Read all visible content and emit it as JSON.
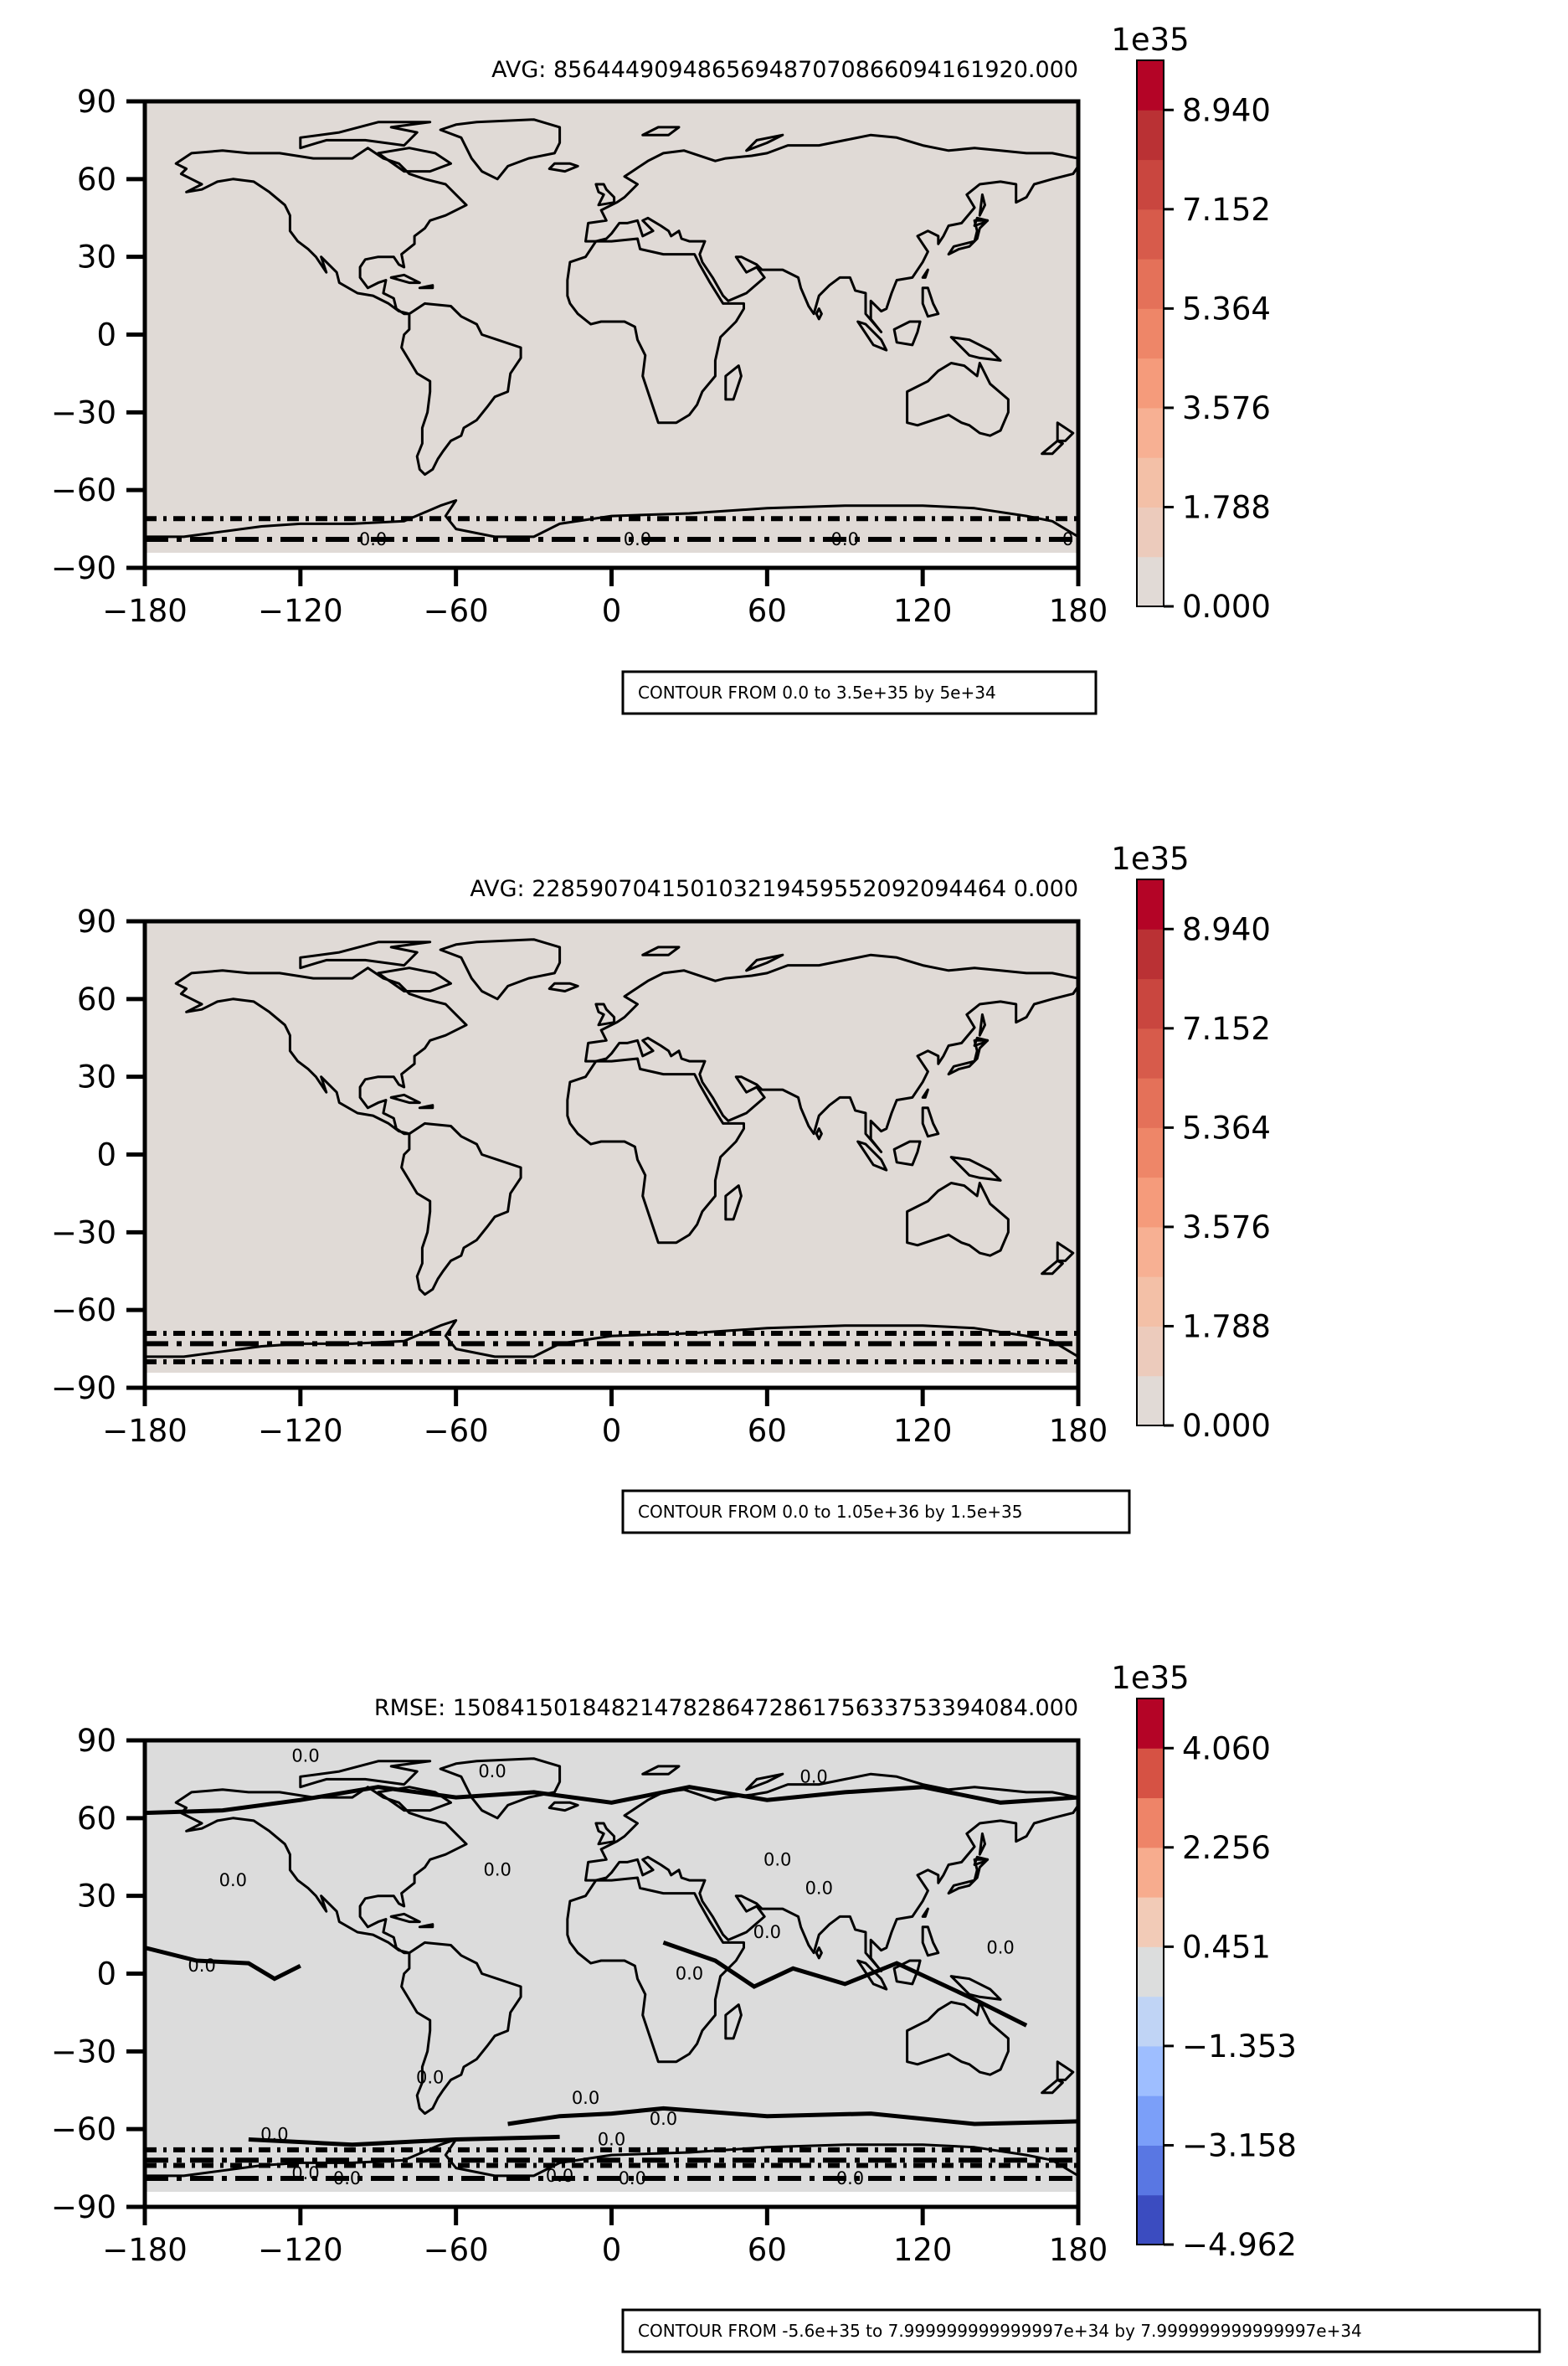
{
  "chart_data": [
    {
      "type": "heatmap",
      "title": "AVG: 856444909486569487070866094161920.000",
      "xlim": [
        -180,
        180
      ],
      "ylim": [
        -90,
        90
      ],
      "xticks": [
        "−180",
        "−120",
        "−60",
        "0",
        "60",
        "120",
        "180"
      ],
      "yticks": [
        "90",
        "60",
        "30",
        "0",
        "−30",
        "−60",
        "−90"
      ],
      "fill_color": "#e0dad6",
      "colorbar": {
        "exponent": "1e35",
        "min": 0.0,
        "max": 9.834,
        "levels": 11,
        "tick_labels": [
          "0.000",
          "1.788",
          "3.576",
          "5.364",
          "7.152",
          "8.940"
        ],
        "colors": [
          "#e1dad6",
          "#eccbbc",
          "#f3c0a7",
          "#f7b093",
          "#f59b7b",
          "#ee8668",
          "#e47159",
          "#d75b4b",
          "#c9463f",
          "#ba3134",
          "#b40426"
        ]
      },
      "contour_labels": [
        "0.0",
        "0.0",
        "0.0",
        "0"
      ],
      "info_box": "CONTOUR FROM 0.0 to 3.5e+35 by 5e+34"
    },
    {
      "type": "heatmap",
      "title": "AVG: 228590704150103219459552092094464 0.000",
      "xlim": [
        -180,
        180
      ],
      "ylim": [
        -90,
        90
      ],
      "xticks": [
        "−180",
        "−120",
        "−60",
        "0",
        "60",
        "120",
        "180"
      ],
      "yticks": [
        "90",
        "60",
        "30",
        "0",
        "−30",
        "−60",
        "−90"
      ],
      "fill_color": "#e0dad6",
      "colorbar": {
        "exponent": "1e35",
        "min": 0.0,
        "max": 9.834,
        "levels": 11,
        "tick_labels": [
          "0.000",
          "1.788",
          "3.576",
          "5.364",
          "7.152",
          "8.940"
        ],
        "colors": [
          "#e1dad6",
          "#eccbbc",
          "#f3c0a7",
          "#f7b093",
          "#f59b7b",
          "#ee8668",
          "#e47159",
          "#d75b4b",
          "#c9463f",
          "#ba3134",
          "#b40426"
        ]
      },
      "contour_labels": [],
      "info_box": "CONTOUR FROM 0.0 to 1.05e+36 by 1.5e+35"
    },
    {
      "type": "heatmap",
      "title": "RMSE: 1508415018482147828647286175633753394084.000",
      "xlim": [
        -180,
        180
      ],
      "ylim": [
        -90,
        90
      ],
      "xticks": [
        "−180",
        "−120",
        "−60",
        "0",
        "60",
        "120",
        "180"
      ],
      "yticks": [
        "90",
        "60",
        "30",
        "0",
        "−30",
        "−60",
        "−90"
      ],
      "fill_color": "#dcdcdc",
      "colorbar": {
        "exponent": "1e35",
        "min": -4.962,
        "max": 4.962,
        "levels": 11,
        "tick_labels": [
          "−4.962",
          "−3.158",
          "−1.353",
          "0.451",
          "2.256",
          "4.060"
        ],
        "colors": [
          "#3b4cc0",
          "#5977e3",
          "#7b9ff9",
          "#9ebeff",
          "#c0d4f5",
          "#dcdddd",
          "#f2cbb7",
          "#f7ac8e",
          "#ee8468",
          "#d65244",
          "#b40426"
        ]
      },
      "contour_labels": [
        "0.0",
        "0.0",
        "0.0",
        "0.0",
        "0.0",
        "0.0",
        "0.0",
        "0.0",
        "0.0",
        "0.0",
        "0.0",
        "0.0",
        "0.0",
        "0.0",
        "0.0",
        "0.0",
        "0.0",
        "0.0",
        "0.0",
        "0.0",
        "0.0"
      ],
      "info_box": "CONTOUR FROM -5.6e+35 to 7.999999999999997e+34 by 7.999999999999997e+34"
    }
  ]
}
